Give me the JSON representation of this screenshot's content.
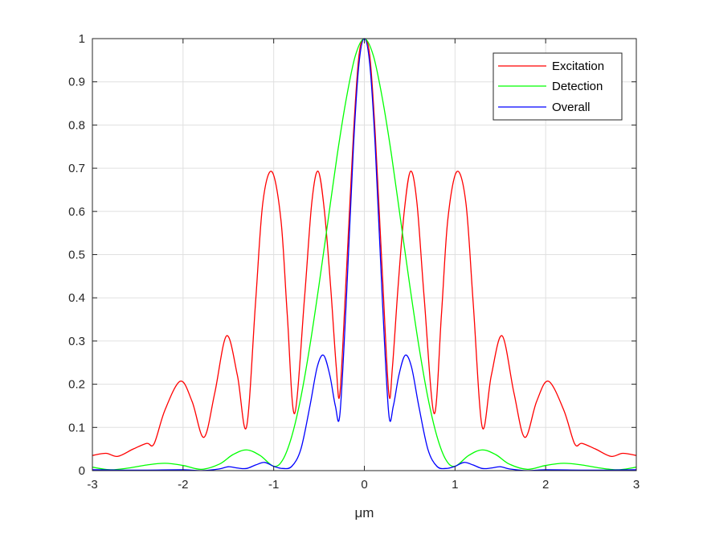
{
  "chart_data": {
    "type": "line",
    "title": "",
    "xlabel": "μm",
    "ylabel": "",
    "xlim": [
      -3,
      3
    ],
    "ylim": [
      0,
      1
    ],
    "xticks": [
      -3,
      -2,
      -1,
      0,
      1,
      2,
      3
    ],
    "xtick_labels": [
      "-3",
      "-2",
      "-1",
      "0",
      "1",
      "2",
      "3"
    ],
    "yticks": [
      0,
      0.1,
      0.2,
      0.3,
      0.4,
      0.5,
      0.6,
      0.7,
      0.8,
      0.9,
      1
    ],
    "ytick_labels": [
      "0",
      "0.1",
      "0.2",
      "0.3",
      "0.4",
      "0.5",
      "0.6",
      "0.7",
      "0.8",
      "0.9",
      "1"
    ],
    "grid": true,
    "legend_position": "top-right",
    "series": [
      {
        "name": "Excitation",
        "color": "#ff0000",
        "points": [
          [
            -3.0,
            0.035
          ],
          [
            -2.85,
            0.04
          ],
          [
            -2.72,
            0.033
          ],
          [
            -2.55,
            0.05
          ],
          [
            -2.4,
            0.063
          ],
          [
            -2.32,
            0.062
          ],
          [
            -2.2,
            0.14
          ],
          [
            -2.03,
            0.207
          ],
          [
            -1.9,
            0.16
          ],
          [
            -1.77,
            0.077
          ],
          [
            -1.65,
            0.18
          ],
          [
            -1.52,
            0.312
          ],
          [
            -1.4,
            0.22
          ],
          [
            -1.3,
            0.101
          ],
          [
            -1.2,
            0.39
          ],
          [
            -1.12,
            0.62
          ],
          [
            -1.02,
            0.692
          ],
          [
            -0.92,
            0.58
          ],
          [
            -0.85,
            0.36
          ],
          [
            -0.77,
            0.132
          ],
          [
            -0.66,
            0.4
          ],
          [
            -0.58,
            0.62
          ],
          [
            -0.51,
            0.693
          ],
          [
            -0.44,
            0.6
          ],
          [
            -0.37,
            0.42
          ],
          [
            -0.31,
            0.24
          ],
          [
            -0.27,
            0.178
          ],
          [
            -0.2,
            0.45
          ],
          [
            -0.12,
            0.78
          ],
          [
            -0.06,
            0.96
          ],
          [
            0.0,
            1.0
          ],
          [
            0.06,
            0.96
          ],
          [
            0.12,
            0.78
          ],
          [
            0.2,
            0.45
          ],
          [
            0.27,
            0.178
          ],
          [
            0.31,
            0.24
          ],
          [
            0.37,
            0.42
          ],
          [
            0.44,
            0.6
          ],
          [
            0.51,
            0.693
          ],
          [
            0.58,
            0.62
          ],
          [
            0.66,
            0.4
          ],
          [
            0.77,
            0.132
          ],
          [
            0.85,
            0.36
          ],
          [
            0.92,
            0.58
          ],
          [
            1.02,
            0.692
          ],
          [
            1.12,
            0.62
          ],
          [
            1.2,
            0.39
          ],
          [
            1.3,
            0.101
          ],
          [
            1.4,
            0.22
          ],
          [
            1.52,
            0.312
          ],
          [
            1.65,
            0.18
          ],
          [
            1.77,
            0.077
          ],
          [
            1.9,
            0.16
          ],
          [
            2.03,
            0.207
          ],
          [
            2.2,
            0.14
          ],
          [
            2.32,
            0.062
          ],
          [
            2.4,
            0.063
          ],
          [
            2.55,
            0.05
          ],
          [
            2.72,
            0.033
          ],
          [
            2.85,
            0.04
          ],
          [
            3.0,
            0.035
          ]
        ]
      },
      {
        "name": "Detection",
        "color": "#00ff00",
        "points": [
          [
            -3.0,
            0.008
          ],
          [
            -2.8,
            0.002
          ],
          [
            -2.6,
            0.006
          ],
          [
            -2.4,
            0.013
          ],
          [
            -2.2,
            0.017
          ],
          [
            -2.0,
            0.012
          ],
          [
            -1.8,
            0.003
          ],
          [
            -1.6,
            0.015
          ],
          [
            -1.45,
            0.037
          ],
          [
            -1.3,
            0.048
          ],
          [
            -1.15,
            0.035
          ],
          [
            -1.0,
            0.01
          ],
          [
            -0.9,
            0.025
          ],
          [
            -0.8,
            0.08
          ],
          [
            -0.7,
            0.17
          ],
          [
            -0.6,
            0.29
          ],
          [
            -0.5,
            0.43
          ],
          [
            -0.4,
            0.58
          ],
          [
            -0.3,
            0.73
          ],
          [
            -0.2,
            0.86
          ],
          [
            -0.1,
            0.96
          ],
          [
            0.0,
            1.0
          ],
          [
            0.1,
            0.96
          ],
          [
            0.2,
            0.86
          ],
          [
            0.3,
            0.73
          ],
          [
            0.4,
            0.58
          ],
          [
            0.5,
            0.43
          ],
          [
            0.6,
            0.29
          ],
          [
            0.7,
            0.17
          ],
          [
            0.8,
            0.08
          ],
          [
            0.9,
            0.025
          ],
          [
            1.0,
            0.01
          ],
          [
            1.15,
            0.035
          ],
          [
            1.3,
            0.048
          ],
          [
            1.45,
            0.037
          ],
          [
            1.6,
            0.015
          ],
          [
            1.8,
            0.003
          ],
          [
            2.0,
            0.012
          ],
          [
            2.2,
            0.017
          ],
          [
            2.4,
            0.013
          ],
          [
            2.6,
            0.006
          ],
          [
            2.8,
            0.002
          ],
          [
            3.0,
            0.008
          ]
        ]
      },
      {
        "name": "Overall",
        "color": "#0000ff",
        "points": [
          [
            -3.0,
            0.002
          ],
          [
            -2.5,
            0.001
          ],
          [
            -2.0,
            0.002
          ],
          [
            -1.8,
            0.0
          ],
          [
            -1.6,
            0.004
          ],
          [
            -1.5,
            0.009
          ],
          [
            -1.4,
            0.006
          ],
          [
            -1.3,
            0.005
          ],
          [
            -1.2,
            0.013
          ],
          [
            -1.1,
            0.019
          ],
          [
            -1.0,
            0.01
          ],
          [
            -0.9,
            0.005
          ],
          [
            -0.8,
            0.01
          ],
          [
            -0.7,
            0.05
          ],
          [
            -0.6,
            0.15
          ],
          [
            -0.52,
            0.24
          ],
          [
            -0.45,
            0.267
          ],
          [
            -0.38,
            0.22
          ],
          [
            -0.32,
            0.15
          ],
          [
            -0.27,
            0.13
          ],
          [
            -0.2,
            0.39
          ],
          [
            -0.12,
            0.75
          ],
          [
            -0.06,
            0.94
          ],
          [
            0.0,
            1.0
          ],
          [
            0.06,
            0.94
          ],
          [
            0.12,
            0.75
          ],
          [
            0.2,
            0.39
          ],
          [
            0.27,
            0.13
          ],
          [
            0.32,
            0.15
          ],
          [
            0.38,
            0.22
          ],
          [
            0.45,
            0.267
          ],
          [
            0.52,
            0.24
          ],
          [
            0.6,
            0.15
          ],
          [
            0.7,
            0.05
          ],
          [
            0.8,
            0.01
          ],
          [
            0.9,
            0.005
          ],
          [
            1.0,
            0.01
          ],
          [
            1.1,
            0.019
          ],
          [
            1.2,
            0.013
          ],
          [
            1.3,
            0.005
          ],
          [
            1.4,
            0.006
          ],
          [
            1.5,
            0.009
          ],
          [
            1.6,
            0.004
          ],
          [
            1.8,
            0.0
          ],
          [
            2.0,
            0.002
          ],
          [
            2.5,
            0.001
          ],
          [
            3.0,
            0.002
          ]
        ]
      }
    ]
  },
  "colors": {
    "grid": "#e0e0e0",
    "axis": "#262626"
  }
}
